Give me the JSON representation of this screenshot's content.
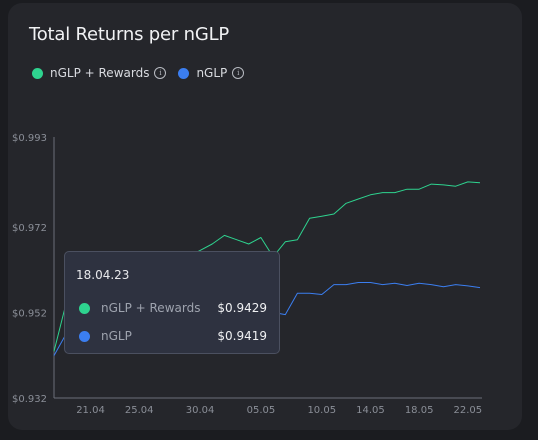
{
  "title": "Total Returns per nGLP",
  "legend": {
    "items": [
      {
        "label": "nGLP + Rewards",
        "color": "#2ed38f",
        "icon": "info-icon"
      },
      {
        "label": "nGLP",
        "color": "#3b7ef0",
        "icon": "info-icon"
      }
    ]
  },
  "tooltip": {
    "date": "18.04.23",
    "rows": [
      {
        "label": "nGLP + Rewards",
        "value": "$0.9429",
        "color": "#2ed38f"
      },
      {
        "label": "nGLP",
        "value": "$0.9419",
        "color": "#3b7ef0"
      }
    ]
  },
  "chart_data": {
    "type": "line",
    "title": "Total Returns per nGLP",
    "xlabel": "",
    "ylabel": "",
    "x_ticks": [
      "21.04",
      "25.04",
      "30.04",
      "05.05",
      "10.05",
      "14.05",
      "18.05",
      "22.05"
    ],
    "y_ticks": [
      "$0.993",
      "$0.972",
      "$0.952",
      "$0.932"
    ],
    "ylim": [
      0.932,
      0.993
    ],
    "grid": false,
    "legend_position": "top-left",
    "x": [
      "18.04",
      "19.04",
      "20.04",
      "21.04",
      "22.04",
      "23.04",
      "24.04",
      "25.04",
      "26.04",
      "27.04",
      "28.04",
      "29.04",
      "30.04",
      "01.05",
      "02.05",
      "03.05",
      "04.05",
      "05.05",
      "06.05",
      "07.05",
      "08.05",
      "09.05",
      "10.05",
      "11.05",
      "12.05",
      "13.05",
      "14.05",
      "15.05",
      "16.05",
      "17.05",
      "18.05",
      "19.05",
      "20.05",
      "21.05",
      "22.05",
      "23.05"
    ],
    "series": [
      {
        "name": "nGLP + Rewards",
        "color": "#2ed38f",
        "values": [
          0.9429,
          0.9542,
          0.9572,
          0.9593,
          0.96,
          0.9605,
          0.961,
          0.9615,
          0.962,
          0.9625,
          0.963,
          0.965,
          0.9665,
          0.968,
          0.97,
          0.969,
          0.968,
          0.9695,
          0.965,
          0.9685,
          0.969,
          0.974,
          0.9745,
          0.975,
          0.9775,
          0.9785,
          0.9795,
          0.98,
          0.98,
          0.9808,
          0.9808,
          0.982,
          0.9818,
          0.9815,
          0.9825,
          0.9823
        ]
      },
      {
        "name": "nGLP",
        "color": "#3b7ef0",
        "values": [
          0.9419,
          0.947,
          0.95,
          0.9515,
          0.952,
          0.9525,
          0.9528,
          0.953,
          0.9532,
          0.9535,
          0.9537,
          0.954,
          0.9543,
          0.9545,
          0.9548,
          0.955,
          0.9548,
          0.9552,
          0.952,
          0.9515,
          0.9565,
          0.9565,
          0.9562,
          0.9585,
          0.9585,
          0.959,
          0.959,
          0.9585,
          0.9588,
          0.9583,
          0.9588,
          0.9585,
          0.958,
          0.9585,
          0.9582,
          0.9578
        ]
      }
    ]
  }
}
